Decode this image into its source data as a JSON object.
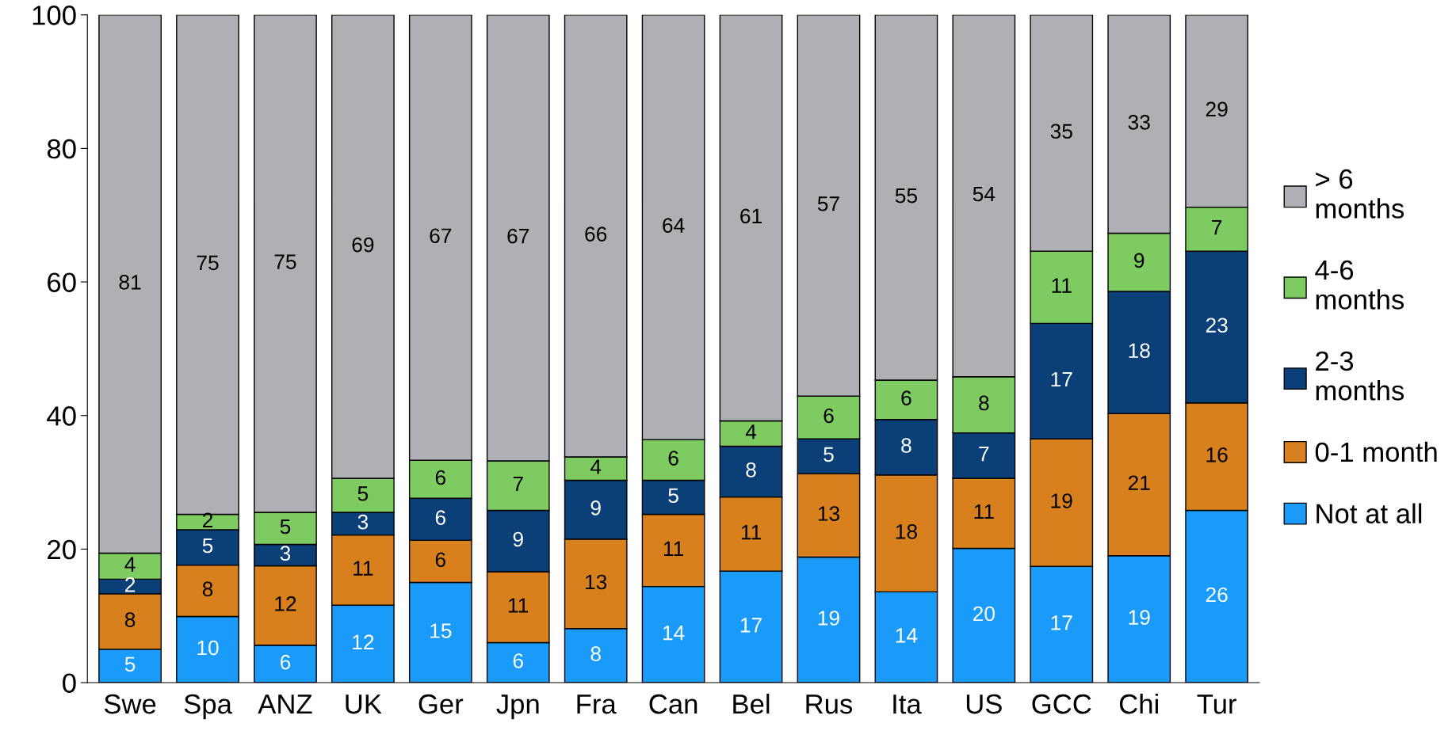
{
  "chart_data": {
    "type": "bar",
    "stacked": true,
    "categories": [
      "Swe",
      "Spa",
      "ANZ",
      "UK",
      "Ger",
      "Jpn",
      "Fra",
      "Can",
      "Bel",
      "Rus",
      "Ita",
      "US",
      "GCC",
      "Chi",
      "Tur"
    ],
    "ylim": [
      0,
      100
    ],
    "yticks": [
      0,
      20,
      40,
      60,
      80,
      100
    ],
    "grid": false,
    "legend": "right",
    "series": [
      {
        "name": "Not at all",
        "color": "#1a9bf9",
        "values": [
          5.0,
          9.9,
          5.6,
          11.6,
          15.0,
          6.0,
          8.1,
          14.4,
          16.7,
          18.8,
          13.6,
          20.1,
          17.4,
          19.0,
          25.8
        ],
        "value_labels": [
          "5",
          "10",
          "6",
          "12",
          "15",
          "6",
          "8",
          "14",
          "17",
          "19",
          "14",
          "20",
          "17",
          "19",
          "26"
        ]
      },
      {
        "name": "0-1 month",
        "color": "#d8801e",
        "values": [
          8.3,
          7.7,
          11.9,
          10.5,
          6.3,
          10.6,
          13.4,
          10.8,
          11.1,
          12.5,
          17.5,
          10.5,
          19.1,
          21.3,
          16.1
        ],
        "value_labels": [
          "8",
          "8",
          "12",
          "11",
          "6",
          "11",
          "13",
          "11",
          "11",
          "13",
          "18",
          "11",
          "19",
          "21",
          "16"
        ]
      },
      {
        "name": "2-3\nmonths",
        "color": "#0b3f78",
        "values": [
          2.2,
          5.3,
          3.2,
          3.4,
          6.3,
          9.2,
          8.8,
          5.1,
          7.6,
          5.2,
          8.3,
          6.8,
          17.3,
          18.3,
          22.7
        ],
        "value_labels": [
          "2",
          "5",
          "3",
          "3",
          "6",
          "9",
          "9",
          "5",
          "8",
          "5",
          "8",
          "7",
          "17",
          "18",
          "23"
        ]
      },
      {
        "name": "4-6\nmonths",
        "color": "#7ecb62",
        "values": [
          3.9,
          2.3,
          4.8,
          5.1,
          5.7,
          7.4,
          3.5,
          6.1,
          3.8,
          6.4,
          5.9,
          8.4,
          10.8,
          8.7,
          6.6
        ],
        "value_labels": [
          "4",
          "2",
          "5",
          "5",
          "6",
          "7",
          "4",
          "6",
          "4",
          "6",
          "6",
          "8",
          "11",
          "9",
          "7"
        ]
      },
      {
        "name": "> 6\nmonths",
        "color": "#afb0b4",
        "values": [
          80.6,
          74.8,
          74.5,
          69.4,
          66.7,
          66.8,
          66.2,
          63.6,
          60.8,
          57.1,
          54.7,
          54.2,
          35.4,
          32.7,
          28.8
        ],
        "value_labels": [
          "81",
          "75",
          "75",
          "69",
          "67",
          "67",
          "66",
          "64",
          "61",
          "57",
          "55",
          "54",
          "35",
          "33",
          "29"
        ]
      }
    ]
  }
}
